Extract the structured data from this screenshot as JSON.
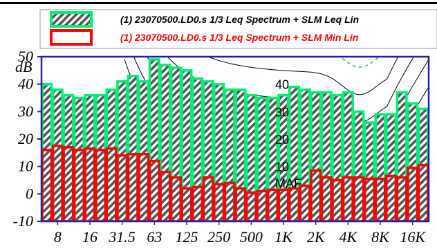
{
  "chart_data": {
    "type": "bar",
    "ylabel": "dB",
    "ylim": [
      -10,
      50
    ],
    "yticks": [
      -10,
      0,
      10,
      20,
      30,
      40,
      50
    ],
    "x_tick_labels": [
      "8",
      "16",
      "31.5",
      "63",
      "125",
      "250",
      "500",
      "1K",
      "2K",
      "4K",
      "8K",
      "16K"
    ],
    "bands": [
      "6.3",
      "8",
      "10",
      "12.5",
      "16",
      "20",
      "25",
      "31.5",
      "40",
      "50",
      "63",
      "80",
      "100",
      "125",
      "160",
      "200",
      "250",
      "315",
      "400",
      "500",
      "630",
      "800",
      "1K",
      "1.25K",
      "1.6K",
      "2K",
      "2.5K",
      "3.15K",
      "4K",
      "5K",
      "6.3K",
      "8K",
      "10K",
      "12.5K",
      "16K",
      "20K"
    ],
    "series": [
      {
        "name": "(1) 23070500.LD0.s 1/3 Leq Spectrum + SLM Leq Lin",
        "color": "#00ee77",
        "values": [
          40,
          38,
          36,
          35,
          36,
          36,
          38,
          41,
          43,
          41,
          49,
          47,
          46,
          45,
          42,
          41,
          40,
          38,
          38,
          36,
          35,
          35,
          36,
          39,
          38,
          37,
          37,
          36,
          37,
          30,
          26,
          29,
          29,
          37,
          33,
          31
        ]
      },
      {
        "name": "(1) 23070500.LD0.s 1/3 Leq Spectrum + SLM Min Lin",
        "color": "#ff0000",
        "values": [
          16,
          17.5,
          17,
          16,
          16.5,
          16,
          16.5,
          14,
          14.5,
          14.5,
          12,
          8,
          6,
          2,
          2.5,
          6,
          3.5,
          4,
          2,
          0.5,
          1,
          1.5,
          1.5,
          2,
          3,
          8.5,
          6,
          5,
          6,
          6,
          5.5,
          5.5,
          6.5,
          6,
          9.5,
          10.5
        ]
      }
    ],
    "contour_labels": [
      "40",
      "30",
      "20",
      "10",
      "MAF"
    ],
    "grid": false,
    "legend": "top"
  }
}
